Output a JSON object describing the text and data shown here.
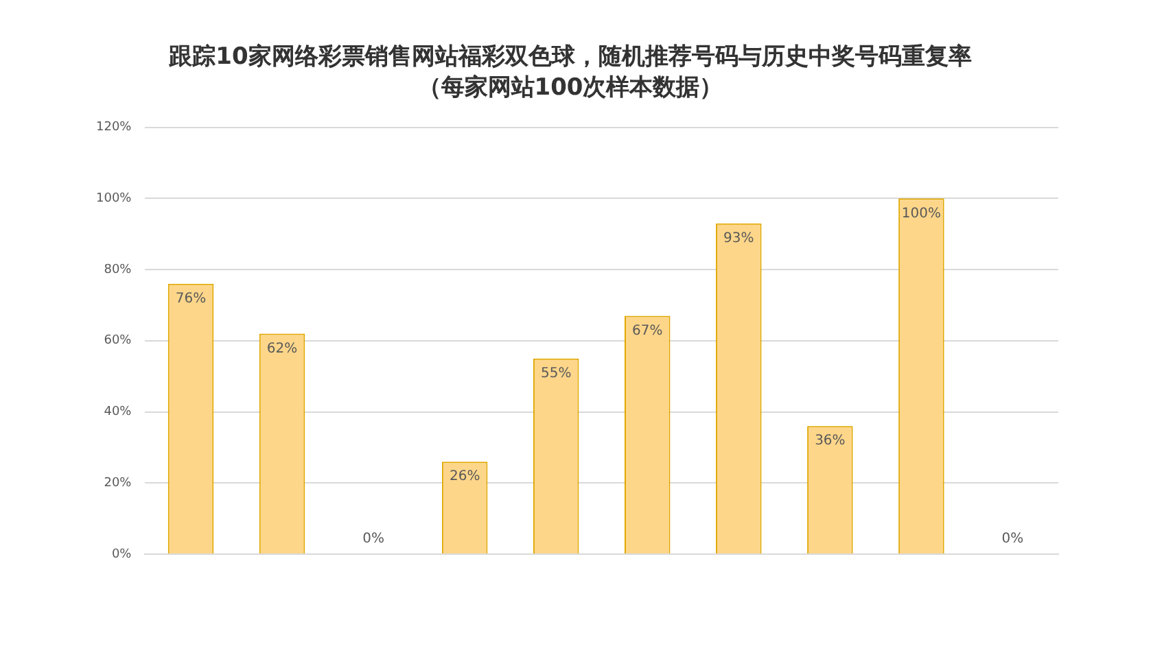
{
  "chart_data": {
    "type": "bar",
    "title": "跟踪10家网络彩票销售网站福彩双色球，随机推荐号码与历史中奖号码重复率",
    "subtitle": "（每家网站100次样本数据）",
    "categories": [
      null,
      null,
      null,
      null,
      null,
      null,
      null,
      null,
      null,
      null
    ],
    "values": [
      76,
      62,
      0,
      26,
      55,
      67,
      93,
      36,
      100,
      0
    ],
    "value_labels": [
      "76%",
      "62%",
      "0%",
      "26%",
      "55%",
      "67%",
      "93%",
      "36%",
      "100%",
      "0%"
    ],
    "color": "#fdd68a",
    "ylim": [
      0,
      120
    ],
    "yticks": [
      {
        "value": 0,
        "label": "0%"
      },
      {
        "value": 20,
        "label": "20%"
      },
      {
        "value": 40,
        "label": "40%"
      },
      {
        "value": 60,
        "label": "60%"
      },
      {
        "value": 80,
        "label": "80%"
      },
      {
        "value": 100,
        "label": "100%"
      },
      {
        "value": 120,
        "label": "120%"
      }
    ],
    "grid": "y"
  }
}
